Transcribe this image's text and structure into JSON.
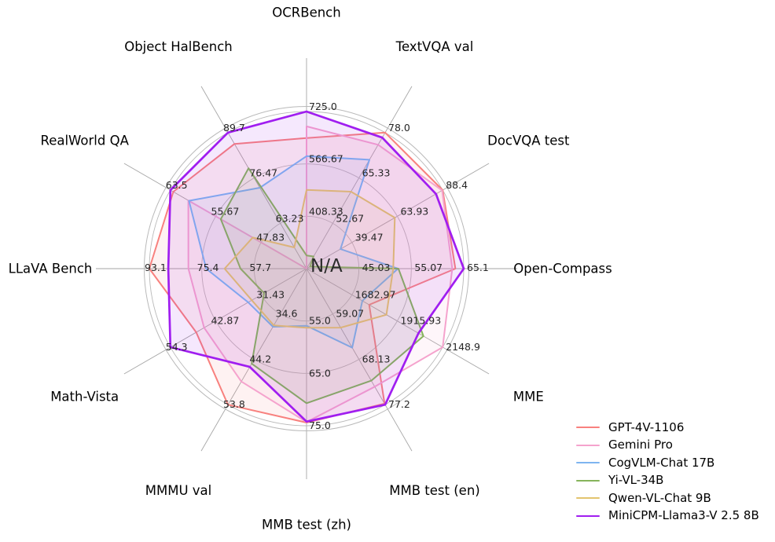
{
  "figure": {
    "background": "#ffffff",
    "grid_color": "#b9b9b9",
    "spoke_color": "#a6a6a6",
    "tick_label_color": "#262626",
    "axis_label_color": "#000000",
    "center_label": "N/A"
  },
  "chart_data": {
    "type": "radar",
    "title": "",
    "grid": true,
    "rings_per_axis": 3,
    "legend_position": "lower right",
    "center_label": "N/A",
    "axes": [
      {
        "label": "OCRBench",
        "min": 250,
        "max": 725,
        "ticks": [
          "408.33",
          "566.67",
          "725.0"
        ]
      },
      {
        "label": "TextVQA val",
        "min": 40,
        "max": 78,
        "ticks": [
          "52.67",
          "65.33",
          "78.0"
        ]
      },
      {
        "label": "DocVQA test",
        "min": 15,
        "max": 88.4,
        "ticks": [
          "39.47",
          "63.93",
          "88.4"
        ]
      },
      {
        "label": "Open-Compass",
        "min": 35,
        "max": 65.1,
        "ticks": [
          "45.03",
          "55.07",
          "65.1"
        ]
      },
      {
        "label": "MME",
        "min": 1450,
        "max": 2148.9,
        "ticks": [
          "1682.97",
          "1915.93",
          "2148.9"
        ]
      },
      {
        "label": "MMB test (en)",
        "min": 50,
        "max": 77.2,
        "ticks": [
          "59.07",
          "68.13",
          "77.2"
        ]
      },
      {
        "label": "MMB test (zh)",
        "min": 45,
        "max": 75.0,
        "ticks": [
          "55.0",
          "65.0",
          "75.0"
        ]
      },
      {
        "label": "MMMU val",
        "min": 25,
        "max": 53.8,
        "ticks": [
          "34.6",
          "44.2",
          "53.8"
        ]
      },
      {
        "label": "Math-Vista",
        "min": 20,
        "max": 54.3,
        "ticks": [
          "31.43",
          "42.87",
          "54.3"
        ]
      },
      {
        "label": "LLaVA Bench",
        "min": 40,
        "max": 93.1,
        "ticks": [
          "57.7",
          "75.4",
          "93.1"
        ]
      },
      {
        "label": "RealWorld QA",
        "min": 40,
        "max": 63.5,
        "ticks": [
          "47.83",
          "55.67",
          "63.5"
        ]
      },
      {
        "label": "Object HalBench",
        "min": 50,
        "max": 89.7,
        "ticks": [
          "63.23",
          "76.47",
          "89.7"
        ]
      }
    ],
    "series": [
      {
        "name": "GPT-4V-1106",
        "color": "#f8817e",
        "line_width": 2,
        "values": [
          645,
          78.0,
          88.4,
          63.5,
          1771.5,
          77.0,
          74.4,
          53.8,
          47.8,
          93.1,
          63.0,
          86.4
        ]
      },
      {
        "name": "Gemini Pro",
        "color": "#f5a3cd",
        "line_width": 2,
        "values": [
          680,
          74.6,
          88.1,
          62.9,
          2148.9,
          73.6,
          74.3,
          48.9,
          45.8,
          79.9,
          60.4,
          null
        ]
      },
      {
        "name": "CogVLM-Chat 17B",
        "color": "#7eb5f0",
        "line_width": 2,
        "values": [
          590,
          70.4,
          33.3,
          52.5,
          1736.6,
          65.8,
          55.9,
          37.3,
          34.7,
          73.9,
          60.3,
          73.6
        ]
      },
      {
        "name": "Yi-VL-34B",
        "color": "#86b45c",
        "line_width": 2,
        "values": [
          290,
          43.4,
          16.9,
          52.6,
          2050.2,
          72.4,
          70.7,
          45.1,
          30.7,
          62.3,
          54.8,
          79.3
        ]
      },
      {
        "name": "Qwen-VL-Chat 9B",
        "color": "#e3c46e",
        "line_width": 2,
        "values": [
          488,
          61.5,
          62.6,
          51.6,
          1860.0,
          61.8,
          56.3,
          37.0,
          33.8,
          67.7,
          49.3,
          56.2
        ]
      },
      {
        "name": "MiniCPM-Llama3-V 2.5 8B",
        "color": "#a01ef0",
        "line_width": 2.7,
        "values": [
          725,
          76.6,
          84.8,
          65.1,
          2024.6,
          77.2,
          74.2,
          45.8,
          54.3,
          86.7,
          63.5,
          89.7
        ]
      }
    ]
  }
}
